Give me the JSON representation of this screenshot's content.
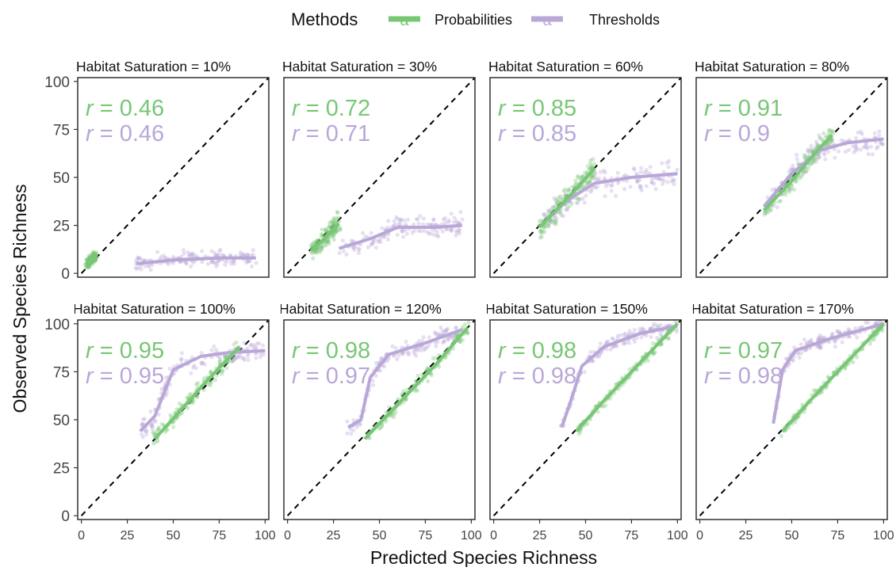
{
  "legend": {
    "title": "Methods",
    "items": [
      {
        "label": "Probabilities",
        "color": "#77c775",
        "glyph": "a"
      },
      {
        "label": "Thresholds",
        "color": "#b9a7d8",
        "glyph": "a"
      }
    ]
  },
  "colors": {
    "probabilities": "#77c775",
    "thresholds": "#b9a7d8",
    "diagonal": "#000000"
  },
  "chart_data": {
    "type": "scatter",
    "layout": "faceted 2x4 grid, points with loess smooth lines and dashed 1:1 reference line",
    "xlabel": "Predicted Species Richness",
    "ylabel": "Observed Species Richness",
    "xlim": [
      0,
      100
    ],
    "ylim": [
      0,
      100
    ],
    "x_ticks": [
      "0",
      "25",
      "50",
      "75",
      "100"
    ],
    "y_ticks": [
      "0",
      "25",
      "50",
      "75",
      "100"
    ],
    "grid": false,
    "legend_position": "top",
    "series_names": [
      "Probabilities",
      "Thresholds"
    ],
    "panels": [
      {
        "title": "Habitat Saturation = 10%",
        "r_prob_label": "r = 0.46",
        "r_thr_label": "r = 0.46",
        "prob_trend": [
          [
            3,
            5
          ],
          [
            5,
            7
          ],
          [
            8,
            9
          ]
        ],
        "thr_trend": [
          [
            30,
            5
          ],
          [
            50,
            7
          ],
          [
            75,
            8
          ],
          [
            95,
            8
          ]
        ],
        "prob_spread": 3,
        "thr_spread": 4
      },
      {
        "title": "Habitat Saturation = 30%",
        "r_prob_label": "r = 0.72",
        "r_thr_label": "r = 0.71",
        "prob_trend": [
          [
            13,
            12
          ],
          [
            20,
            18
          ],
          [
            25,
            23
          ],
          [
            28,
            26
          ]
        ],
        "thr_trend": [
          [
            28,
            13
          ],
          [
            45,
            18
          ],
          [
            60,
            24
          ],
          [
            80,
            24
          ],
          [
            95,
            25
          ]
        ],
        "prob_spread": 6,
        "thr_spread": 6
      },
      {
        "title": "Habitat Saturation = 60%",
        "r_prob_label": "r = 0.85",
        "r_thr_label": "r = 0.85",
        "prob_trend": [
          [
            25,
            24
          ],
          [
            35,
            34
          ],
          [
            45,
            44
          ],
          [
            55,
            55
          ]
        ],
        "thr_trend": [
          [
            27,
            26
          ],
          [
            40,
            38
          ],
          [
            55,
            47
          ],
          [
            75,
            50
          ],
          [
            100,
            52
          ]
        ],
        "prob_spread": 7,
        "thr_spread": 8
      },
      {
        "title": "Habitat Saturation = 80%",
        "r_prob_label": "r = 0.91",
        "r_thr_label": "r = 0.9",
        "prob_trend": [
          [
            35,
            33
          ],
          [
            50,
            48
          ],
          [
            62,
            62
          ],
          [
            72,
            72
          ]
        ],
        "thr_trend": [
          [
            35,
            35
          ],
          [
            50,
            52
          ],
          [
            65,
            64
          ],
          [
            80,
            68
          ],
          [
            100,
            70
          ]
        ],
        "prob_spread": 6,
        "thr_spread": 7
      },
      {
        "title": "Habitat Saturation = 100%",
        "r_prob_label": "r = 0.95",
        "r_thr_label": "r = 0.95",
        "prob_trend": [
          [
            40,
            40
          ],
          [
            55,
            56
          ],
          [
            70,
            72
          ],
          [
            86,
            88
          ]
        ],
        "thr_trend": [
          [
            32,
            44
          ],
          [
            40,
            52
          ],
          [
            50,
            76
          ],
          [
            65,
            83
          ],
          [
            80,
            85
          ],
          [
            100,
            86
          ]
        ],
        "prob_spread": 5,
        "thr_spread": 6
      },
      {
        "title": "Habitat Saturation = 120%",
        "r_prob_label": "r = 0.98",
        "r_thr_label": "r = 0.97",
        "prob_trend": [
          [
            42,
            40
          ],
          [
            60,
            58
          ],
          [
            80,
            78
          ],
          [
            98,
            98
          ]
        ],
        "thr_trend": [
          [
            33,
            46
          ],
          [
            40,
            50
          ],
          [
            45,
            72
          ],
          [
            55,
            84
          ],
          [
            75,
            90
          ],
          [
            95,
            97
          ]
        ],
        "prob_spread": 4,
        "thr_spread": 5
      },
      {
        "title": "Habitat Saturation = 150%",
        "r_prob_label": "r = 0.98",
        "r_thr_label": "r = 0.98",
        "prob_trend": [
          [
            45,
            44
          ],
          [
            60,
            60
          ],
          [
            80,
            80
          ],
          [
            100,
            100
          ]
        ],
        "thr_trend": [
          [
            37,
            46
          ],
          [
            42,
            60
          ],
          [
            48,
            78
          ],
          [
            60,
            88
          ],
          [
            80,
            95
          ],
          [
            100,
            99
          ]
        ],
        "prob_spread": 3,
        "thr_spread": 4
      },
      {
        "title": "Habitat Saturation = 170%",
        "r_prob_label": "r = 0.97",
        "r_thr_label": "r = 0.98",
        "prob_trend": [
          [
            45,
            44
          ],
          [
            60,
            60
          ],
          [
            80,
            80
          ],
          [
            100,
            100
          ]
        ],
        "thr_trend": [
          [
            40,
            48
          ],
          [
            45,
            76
          ],
          [
            52,
            86
          ],
          [
            70,
            92
          ],
          [
            100,
            100
          ]
        ],
        "prob_spread": 3,
        "thr_spread": 4
      }
    ]
  }
}
